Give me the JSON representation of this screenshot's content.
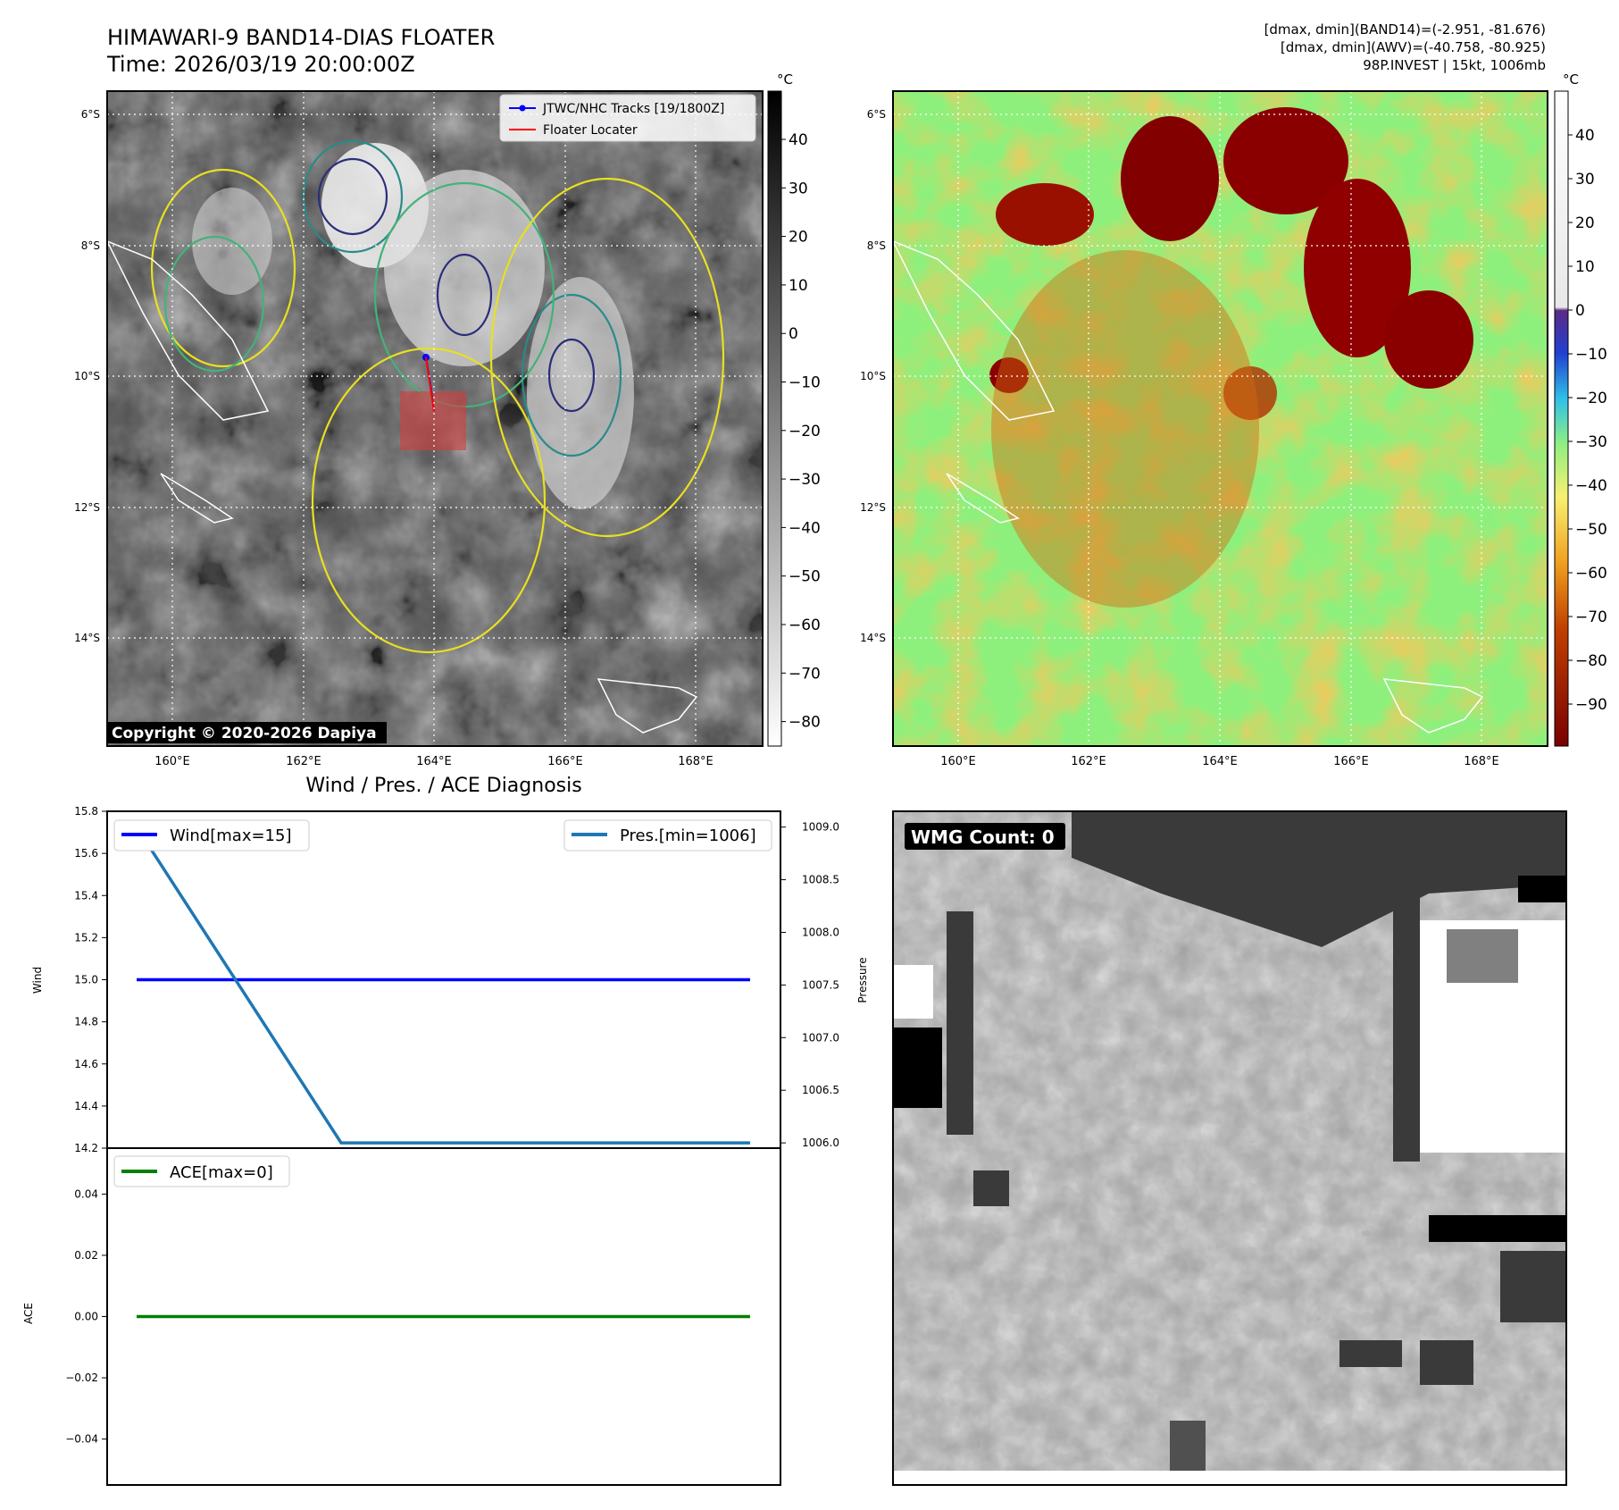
{
  "header": {
    "title_line1": "HIMAWARI-9 BAND14-DIAS FLOATER",
    "title_line2": "Time: 2026/03/19 20:00:00Z",
    "info_line1": "[dmax, dmin](BAND14)=(-2.951, -81.676)",
    "info_line2": "[dmax, dmin](AWV)=(-40.758, -80.925)",
    "info_line3": "98P.INVEST | 15kt, 1006mb"
  },
  "map_axes": {
    "lat_ticks": [
      "6°S",
      "8°S",
      "10°S",
      "12°S",
      "14°S"
    ],
    "lon_ticks": [
      "160°E",
      "162°E",
      "164°E",
      "166°E",
      "168°E"
    ]
  },
  "ir_panel": {
    "legend": [
      "JTWC/NHC Tracks [19/1800Z]",
      "Floater Locater"
    ],
    "copyright": "Copyright © 2020-2026 Dapiya",
    "colorbar_unit": "°C",
    "colorbar_ticks": [
      "40",
      "30",
      "20",
      "10",
      "0",
      "−10",
      "−20",
      "−30",
      "−40",
      "−50",
      "−60",
      "−70",
      "−80"
    ],
    "track_color": "#0000ff",
    "locator_color": "#ff0000"
  },
  "awv_panel": {
    "colorbar_unit": "°C",
    "colorbar_ticks": [
      "40",
      "30",
      "20",
      "10",
      "0",
      "−10",
      "−20",
      "−30",
      "−40",
      "−50",
      "−60",
      "−70",
      "−80",
      "−90"
    ]
  },
  "diagnosis_title": "Wind / Pres. / ACE Diagnosis",
  "wmg_panel": {
    "label": "WMG Count: 0"
  },
  "chart_data": [
    {
      "type": "line",
      "title": "Wind / Pres. / ACE Diagnosis",
      "ylabel": "Wind",
      "ylabel_right": "Pressure",
      "ylim": [
        14.2,
        15.8
      ],
      "ylim_right": [
        1005.95,
        1009.15
      ],
      "yticks": [
        "14.2",
        "14.4",
        "14.6",
        "14.8",
        "15.0",
        "15.2",
        "15.4",
        "15.6",
        "15.8"
      ],
      "yticks_right": [
        "1006.0",
        "1006.5",
        "1007.0",
        "1007.5",
        "1008.0",
        "1008.5",
        "1009.0"
      ],
      "series": [
        {
          "name": "Wind[max=15]",
          "axis": "left",
          "color": "#0000ff",
          "values": [
            15,
            15,
            15,
            15
          ]
        },
        {
          "name": "Pres.[min=1006]",
          "axis": "right",
          "color": "#1f77b4",
          "values": [
            1009,
            1006,
            1006,
            1006
          ]
        }
      ]
    },
    {
      "type": "line",
      "ylabel": "ACE",
      "ylim": [
        -0.055,
        0.055
      ],
      "yticks": [
        "−0.04",
        "−0.02",
        "0.00",
        "0.02",
        "0.04"
      ],
      "series": [
        {
          "name": "ACE[max=0]",
          "color": "#008000",
          "values": [
            0,
            0,
            0,
            0
          ]
        }
      ]
    }
  ]
}
